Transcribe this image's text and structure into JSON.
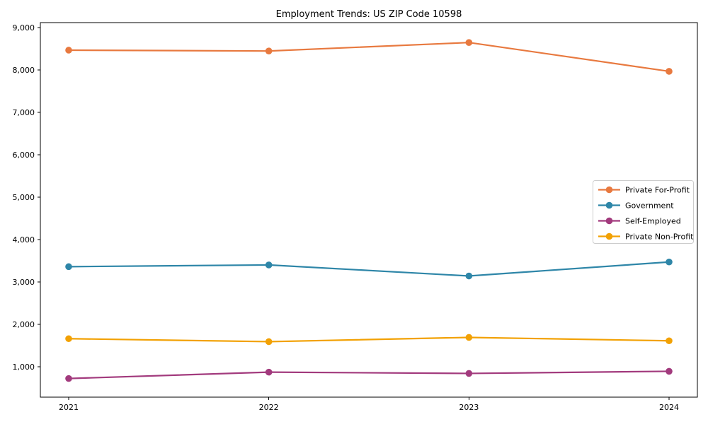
{
  "chart_data": {
    "type": "line",
    "title": "Employment Trends: US ZIP Code 10598",
    "xlabel": "",
    "ylabel": "",
    "categories": [
      "2021",
      "2022",
      "2023",
      "2024"
    ],
    "series": [
      {
        "name": "Private For-Profit",
        "color": "#E8793F",
        "values": [
          8470,
          8450,
          8650,
          7970
        ]
      },
      {
        "name": "Government",
        "color": "#2E86A8",
        "values": [
          3360,
          3400,
          3140,
          3470
        ]
      },
      {
        "name": "Self-Employed",
        "color": "#A23A7D",
        "values": [
          720,
          870,
          840,
          890
        ]
      },
      {
        "name": "Private Non-Profit",
        "color": "#F2A104",
        "values": [
          1660,
          1590,
          1690,
          1610
        ]
      }
    ],
    "yticks": [
      1000,
      2000,
      3000,
      4000,
      5000,
      6000,
      7000,
      8000,
      9000
    ],
    "ylim": [
      280,
      9120
    ],
    "grid": false,
    "legend_position": "right-center",
    "marker": "circle",
    "background_color": "#ffffff",
    "axis_color": "#000000",
    "legend_border_color": "#cccccc"
  }
}
